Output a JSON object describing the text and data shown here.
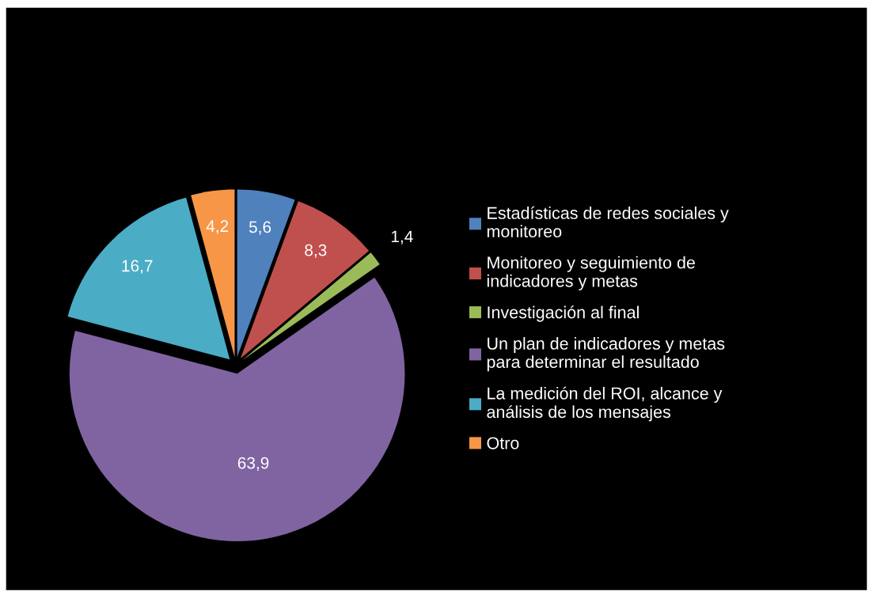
{
  "chart_data": {
    "type": "pie",
    "categories": [
      "Estadísticas de redes sociales y\nmonitoreo",
      "Monitoreo y seguimiento de\nindicadores y metas",
      "Investigación al final",
      "Un plan de indicadores y metas\npara determinar el resultado",
      "La medición del ROI, alcance y\nanálisis de los mensajes",
      "Otro"
    ],
    "values": [
      5.6,
      8.3,
      1.4,
      63.9,
      16.7,
      4.2
    ],
    "value_labels": [
      "5,6",
      "8,3",
      "1,4",
      "63,9",
      "16,7",
      "4,2"
    ],
    "colors": [
      "#4f81bd",
      "#c0504d",
      "#9bbb59",
      "#8064a2",
      "#4bacc6",
      "#f79646"
    ],
    "legend": "right"
  }
}
